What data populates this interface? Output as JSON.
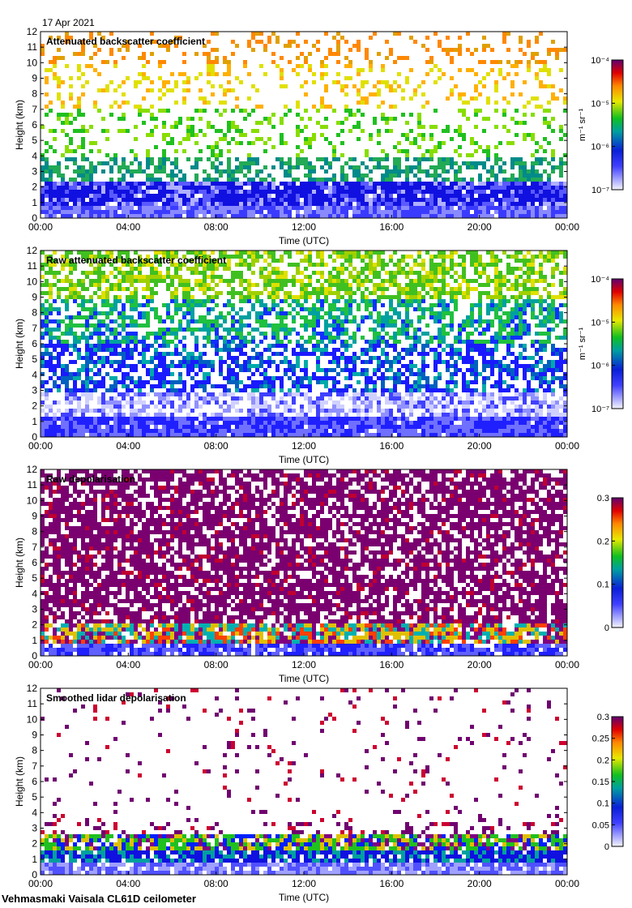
{
  "date_label": "17 Apr 2021",
  "footer": "Vehmasmaki Vaisala CL61D ceilometer",
  "chart_data": [
    {
      "type": "heatmap",
      "title": "Attenuated backscatter coefficient",
      "xlabel": "Time (UTC)",
      "ylabel": "Height (km)",
      "x_ticks": [
        "00:00",
        "04:00",
        "08:00",
        "12:00",
        "16:00",
        "20:00",
        "00:00"
      ],
      "y_ticks": [
        "0",
        "1",
        "2",
        "3",
        "4",
        "5",
        "6",
        "7",
        "8",
        "9",
        "10",
        "11",
        "12"
      ],
      "ylim": [
        0,
        12
      ],
      "colorbar": {
        "scale": "log",
        "label": "m⁻¹ sr⁻¹",
        "ticks": [
          "10⁻⁷",
          "10⁻⁶",
          "10⁻⁵",
          "10⁻⁴"
        ],
        "range": [
          1e-07,
          0.0001
        ]
      }
    },
    {
      "type": "heatmap",
      "title": "Raw attenuated backscatter coefficient",
      "xlabel": "Time (UTC)",
      "ylabel": "Height (km)",
      "x_ticks": [
        "00:00",
        "04:00",
        "08:00",
        "12:00",
        "16:00",
        "20:00",
        "00:00"
      ],
      "y_ticks": [
        "0",
        "1",
        "2",
        "3",
        "4",
        "5",
        "6",
        "7",
        "8",
        "9",
        "10",
        "11",
        "12"
      ],
      "ylim": [
        0,
        12
      ],
      "colorbar": {
        "scale": "log",
        "label": "m⁻¹ sr⁻¹",
        "ticks": [
          "10⁻⁷",
          "10⁻⁶",
          "10⁻⁵",
          "10⁻⁴"
        ],
        "range": [
          1e-07,
          0.0001
        ]
      }
    },
    {
      "type": "heatmap",
      "title": "Raw depolarisation",
      "xlabel": "Time (UTC)",
      "ylabel": "Height (km)",
      "x_ticks": [
        "00:00",
        "04:00",
        "08:00",
        "12:00",
        "16:00",
        "20:00",
        "00:00"
      ],
      "y_ticks": [
        "0",
        "1",
        "2",
        "3",
        "4",
        "5",
        "6",
        "7",
        "8",
        "9",
        "10",
        "11",
        "12"
      ],
      "ylim": [
        0,
        12
      ],
      "colorbar": {
        "scale": "linear",
        "label": "",
        "ticks": [
          "0",
          "0.1",
          "0.2",
          "0.3"
        ],
        "range": [
          0,
          0.3
        ]
      }
    },
    {
      "type": "heatmap",
      "title": "Smoothed lidar depolarisation",
      "xlabel": "Time (UTC)",
      "ylabel": "Height (km)",
      "x_ticks": [
        "00:00",
        "04:00",
        "08:00",
        "12:00",
        "16:00",
        "20:00",
        "00:00"
      ],
      "y_ticks": [
        "0",
        "1",
        "2",
        "3",
        "4",
        "5",
        "6",
        "7",
        "8",
        "9",
        "10",
        "11",
        "12"
      ],
      "ylim": [
        0,
        12
      ],
      "colorbar": {
        "scale": "linear",
        "label": "",
        "ticks": [
          "0",
          "0.05",
          "0.1",
          "0.15",
          "0.2",
          "0.25",
          "0.3"
        ],
        "range": [
          0,
          0.3
        ]
      }
    }
  ]
}
